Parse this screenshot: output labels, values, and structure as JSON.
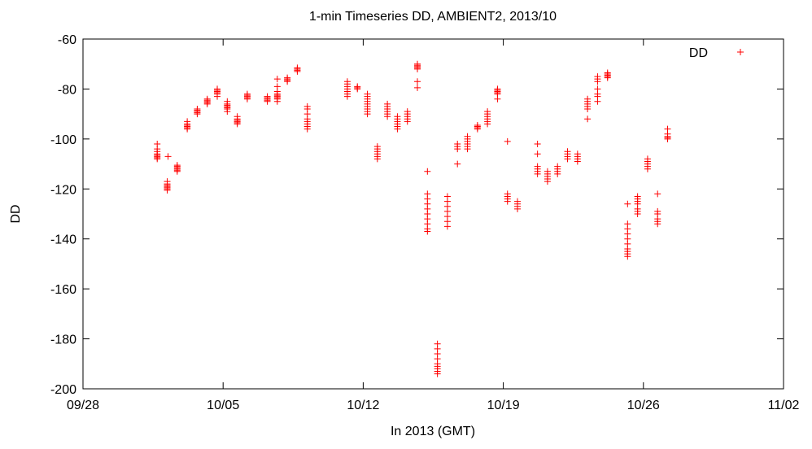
{
  "chart_data": {
    "type": "scatter",
    "title": "1-min Timeseries DD, AMBIENT2, 2013/10",
    "xlabel": "In 2013 (GMT)",
    "ylabel": "DD",
    "x_axis_kind": "date",
    "xlim": [
      "09/28",
      "11/02"
    ],
    "ylim": [
      -200,
      -60
    ],
    "x_ticks": [
      {
        "day": 0,
        "label": "09/28"
      },
      {
        "day": 7,
        "label": "10/05"
      },
      {
        "day": 14,
        "label": "10/12"
      },
      {
        "day": 21,
        "label": "10/19"
      },
      {
        "day": 28,
        "label": "10/26"
      },
      {
        "day": 35,
        "label": "11/02"
      }
    ],
    "y_ticks": [
      -60,
      -80,
      -100,
      -120,
      -140,
      -160,
      -180,
      -200
    ],
    "grid": false,
    "legend": {
      "position": "top-right",
      "entries": [
        {
          "label": "DD",
          "marker": "+"
        }
      ]
    },
    "marker_color": "#ff0000",
    "series": [
      {
        "name": "DD",
        "clusters": [
          {
            "x": "10/01 17:00",
            "y": [
              -105,
              -106,
              -106.5,
              -107,
              -107.5,
              -108,
              -104,
              -102
            ]
          },
          {
            "x": "10/02 06:00",
            "y": [
              -107
            ]
          },
          {
            "x": "10/02 05:00",
            "y": [
              -117,
              -118,
              -118.5,
              -119,
              -119.5,
              -120,
              -120.5
            ]
          },
          {
            "x": "10/02 17:00",
            "y": [
              -111,
              -111.5,
              -112,
              -112.5,
              -113,
              -110.5
            ]
          },
          {
            "x": "10/03 05:00",
            "y": [
              -93,
              -94,
              -94.5,
              -95,
              -95.5,
              -96
            ]
          },
          {
            "x": "10/03 17:00",
            "y": [
              -88,
              -88.5,
              -89,
              -89.5,
              -90
            ]
          },
          {
            "x": "10/04 05:00",
            "y": [
              -84,
              -84.5,
              -85,
              -85.5,
              -86
            ]
          },
          {
            "x": "10/04 17:00",
            "y": [
              -80,
              -80.5,
              -81,
              -81.5,
              -82,
              -83
            ]
          },
          {
            "x": "10/05 05:00",
            "y": [
              -86,
              -86.5,
              -87,
              -87.5,
              -88,
              -89,
              -85
            ]
          },
          {
            "x": "10/05 17:00",
            "y": [
              -91,
              -92,
              -92.5,
              -93,
              -93.5,
              -94
            ]
          },
          {
            "x": "10/06 05:00",
            "y": [
              -82,
              -82.5,
              -83,
              -83.5,
              -84
            ]
          },
          {
            "x": "10/07 05:00",
            "y": [
              -83,
              -83.5,
              -84,
              -84.5,
              -85
            ]
          },
          {
            "x": "10/07 17:00",
            "y": [
              -76,
              -79,
              -81,
              -82,
              -82.5,
              -83,
              -83.5,
              -84,
              -85
            ]
          },
          {
            "x": "10/08 05:00",
            "y": [
              -75.5,
              -76,
              -76.5,
              -77
            ]
          },
          {
            "x": "10/08 17:00",
            "y": [
              -71.5,
              -72,
              -72.5,
              -73
            ]
          },
          {
            "x": "10/09 05:00",
            "y": [
              -87,
              -88,
              -90,
              -92,
              -93,
              -94,
              -95,
              -96
            ]
          },
          {
            "x": "10/11 05:00",
            "y": [
              -77,
              -78,
              -79,
              -80,
              -81,
              -82,
              -83
            ]
          },
          {
            "x": "10/11 17:00",
            "y": [
              -79,
              -79.5,
              -80
            ]
          },
          {
            "x": "10/12 05:00",
            "y": [
              -82,
              -83,
              -84,
              -85,
              -86,
              -87,
              -88,
              -89,
              -90
            ]
          },
          {
            "x": "10/12 17:00",
            "y": [
              -103,
              -104,
              -105,
              -106,
              -107,
              -108
            ]
          },
          {
            "x": "10/13 05:00",
            "y": [
              -86,
              -87,
              -88,
              -89,
              -90,
              -91
            ]
          },
          {
            "x": "10/13 17:00",
            "y": [
              -91,
              -92,
              -93,
              -94,
              -95,
              -96
            ]
          },
          {
            "x": "10/14 05:00",
            "y": [
              -89,
              -90,
              -91,
              -92,
              -93
            ]
          },
          {
            "x": "10/14 17:00",
            "y": [
              -70,
              -70.5,
              -71,
              -71.5,
              -72,
              -79.5,
              -77
            ]
          },
          {
            "x": "10/15 05:00",
            "y": [
              -113,
              -122,
              -124,
              -126,
              -128,
              -130,
              -132,
              -134,
              -136,
              -137
            ]
          },
          {
            "x": "10/15 17:00",
            "y": [
              -182,
              -184,
              -186,
              -188,
              -190,
              -191,
              -192,
              -193,
              -194
            ]
          },
          {
            "x": "10/16 05:00",
            "y": [
              -123,
              -125,
              -127,
              -129,
              -131,
              -133,
              -135
            ]
          },
          {
            "x": "10/16 17:00",
            "y": [
              -102,
              -103,
              -104,
              -110
            ]
          },
          {
            "x": "10/17 05:00",
            "y": [
              -99,
              -100,
              -101,
              -102,
              -103,
              -104
            ]
          },
          {
            "x": "10/17 17:00",
            "y": [
              -94.5,
              -95,
              -95.5,
              -96
            ]
          },
          {
            "x": "10/18 05:00",
            "y": [
              -89,
              -90,
              -91,
              -92,
              -93,
              -94
            ]
          },
          {
            "x": "10/18 17:00",
            "y": [
              -80,
              -80.5,
              -81,
              -81.5,
              -82,
              -84
            ]
          },
          {
            "x": "10/19 05:00",
            "y": [
              -101
            ]
          },
          {
            "x": "10/19 05:00",
            "y": [
              -122,
              -123,
              -124,
              -125
            ]
          },
          {
            "x": "10/19 17:00",
            "y": [
              -125,
              -126,
              -127,
              -128
            ]
          },
          {
            "x": "10/20 17:00",
            "y": [
              -102,
              -106,
              -111,
              -112,
              -113,
              -114
            ]
          },
          {
            "x": "10/21 05:00",
            "y": [
              -113,
              -114,
              -115,
              -116,
              -117
            ]
          },
          {
            "x": "10/21 17:00",
            "y": [
              -111,
              -112,
              -113,
              -114
            ]
          },
          {
            "x": "10/22 05:00",
            "y": [
              -105,
              -106,
              -107,
              -108
            ]
          },
          {
            "x": "10/22 17:00",
            "y": [
              -106,
              -107,
              -108,
              -109
            ]
          },
          {
            "x": "10/23 05:00",
            "y": [
              -84,
              -85,
              -86,
              -87,
              -88,
              -92
            ]
          },
          {
            "x": "10/23 17:00",
            "y": [
              -75,
              -76,
              -77,
              -80,
              -82,
              -83,
              -85
            ]
          },
          {
            "x": "10/24 05:00",
            "y": [
              -73.5,
              -74,
              -74.5,
              -75,
              -75.5
            ]
          },
          {
            "x": "10/25 05:00",
            "y": [
              -126,
              -134,
              -136,
              -138,
              -140,
              -142,
              -144,
              -145,
              -146,
              -147
            ]
          },
          {
            "x": "10/25 17:00",
            "y": [
              -123,
              -124,
              -125,
              -126,
              -128,
              -129,
              -130
            ]
          },
          {
            "x": "10/26 05:00",
            "y": [
              -108,
              -109,
              -110,
              -111,
              -112
            ]
          },
          {
            "x": "10/26 17:00",
            "y": [
              -122,
              -129,
              -130,
              -132,
              -133,
              -134
            ]
          },
          {
            "x": "10/27 05:00",
            "y": [
              -96,
              -98,
              -99,
              -99.5,
              -100
            ]
          }
        ]
      }
    ]
  }
}
